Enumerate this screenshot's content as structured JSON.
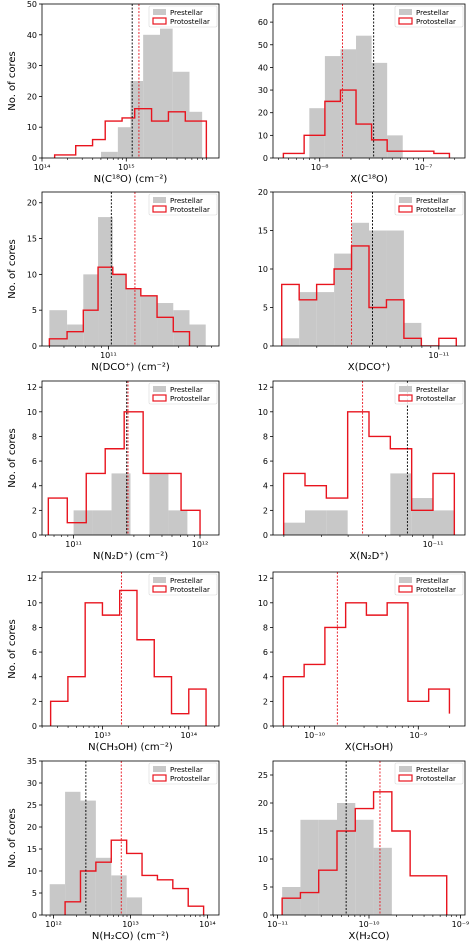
{
  "legend": {
    "prestellar": "Prestellar",
    "protostellar": "Protostellar"
  },
  "colors": {
    "prestellar_fill": "#c8c8c8",
    "protostellar_edge": "#e8141e",
    "median_prestellar": "#000000",
    "median_protostellar": "#e8141e"
  },
  "chart_data": [
    {
      "type": "bar",
      "xscale": "log",
      "xlim_log10": [
        14.0,
        16.1
      ],
      "ylim": [
        0,
        50
      ],
      "yticks": [
        0,
        10,
        20,
        30,
        40,
        50
      ],
      "xticks_log10": [
        14,
        15
      ],
      "xtick_labels": [
        "10¹⁴",
        "10¹⁵"
      ],
      "xlabel": "N(C¹⁸O) (cm⁻²)",
      "ylabel": "No. of cores",
      "legend": true,
      "prestellar": {
        "edges_log10": [
          14.5,
          14.7,
          14.9,
          15.05,
          15.2,
          15.4,
          15.55,
          15.75,
          15.9
        ],
        "counts": [
          0,
          2,
          10,
          25,
          40,
          42,
          28,
          15,
          6
        ]
      },
      "protostellar": {
        "edges_log10": [
          14.15,
          14.4,
          14.6,
          14.75,
          14.95,
          15.1,
          15.3,
          15.5,
          15.7,
          15.95
        ],
        "counts": [
          1,
          4,
          6,
          12,
          13,
          16,
          12,
          15,
          12
        ]
      },
      "median_prestellar_log10": 15.07,
      "median_protostellar_log10": 15.15
    },
    {
      "type": "bar",
      "xscale": "log",
      "xlim_log10": [
        -8.45,
        -6.6
      ],
      "ylim": [
        0,
        68
      ],
      "yticks": [
        0,
        10,
        20,
        30,
        40,
        50,
        60
      ],
      "xticks_log10": [
        -8,
        -7
      ],
      "xtick_labels": [
        "10⁻⁸",
        "10⁻⁷"
      ],
      "xlabel": "X(C¹⁸O)",
      "ylabel": "",
      "legend": true,
      "prestellar": {
        "edges_log10": [
          -8.3,
          -8.1,
          -7.95,
          -7.8,
          -7.65,
          -7.5,
          -7.35,
          -7.2,
          -7.05,
          -6.9
        ],
        "counts": [
          0,
          22,
          45,
          48,
          54,
          42,
          10,
          0,
          0
        ]
      },
      "protostellar": {
        "edges_log10": [
          -8.35,
          -8.15,
          -7.95,
          -7.8,
          -7.65,
          -7.5,
          -7.35,
          -7.2,
          -7.05,
          -6.9,
          -6.75
        ],
        "counts": [
          2,
          10,
          25,
          30,
          15,
          8,
          3,
          3,
          3,
          2
        ]
      },
      "median_prestellar_log10": -7.48,
      "median_protostellar_log10": -7.78
    },
    {
      "type": "bar",
      "xscale": "log",
      "xlim_log10": [
        10.55,
        11.75
      ],
      "ylim": [
        0,
        21.5
      ],
      "yticks": [
        0,
        5,
        10,
        15,
        20
      ],
      "xticks_log10": [
        11
      ],
      "xtick_labels": [
        "10¹¹"
      ],
      "xlabel": "N(DCO⁺) (cm⁻²)",
      "ylabel": "No. of cores",
      "legend": true,
      "prestellar": {
        "edges_log10": [
          10.6,
          10.72,
          10.83,
          10.93,
          11.03,
          11.12,
          11.22,
          11.33,
          11.44,
          11.55,
          11.66
        ],
        "counts": [
          5,
          3,
          10,
          18,
          10,
          8,
          7,
          6,
          5,
          3
        ]
      },
      "protostellar": {
        "edges_log10": [
          10.6,
          10.72,
          10.83,
          10.93,
          11.03,
          11.12,
          11.22,
          11.33,
          11.44,
          11.55
        ],
        "counts": [
          1,
          2,
          5,
          11,
          10,
          8,
          7,
          4,
          2
        ]
      },
      "median_prestellar_log10": 11.02,
      "median_protostellar_log10": 11.18
    },
    {
      "type": "bar",
      "xscale": "log",
      "xlim_log10": [
        -11.95,
        -10.85
      ],
      "ylim": [
        0,
        20
      ],
      "yticks": [
        0,
        5,
        10,
        15,
        20
      ],
      "xticks_log10": [
        -11
      ],
      "xtick_labels": [
        "10⁻¹¹"
      ],
      "xlabel": "X(DCO⁺)",
      "ylabel": "",
      "legend": true,
      "prestellar": {
        "edges_log10": [
          -11.9,
          -11.8,
          -11.7,
          -11.6,
          -11.5,
          -11.4,
          -11.3,
          -11.2,
          -11.1,
          -11.0
        ],
        "counts": [
          1,
          7,
          7,
          12,
          16,
          15,
          15,
          3,
          0
        ]
      },
      "protostellar": {
        "edges_log10": [
          -11.9,
          -11.8,
          -11.7,
          -11.6,
          -11.5,
          -11.4,
          -11.3,
          -11.2,
          -11.1,
          -11.0,
          -10.9
        ],
        "counts": [
          8,
          6,
          8,
          10,
          13,
          5,
          6,
          1,
          0,
          1
        ]
      },
      "median_prestellar_log10": -11.38,
      "median_protostellar_log10": -11.5
    },
    {
      "type": "bar",
      "xscale": "log",
      "xlim_log10": [
        10.75,
        12.15
      ],
      "ylim": [
        0,
        12.5
      ],
      "yticks": [
        0,
        2,
        4,
        6,
        8,
        10,
        12
      ],
      "xticks_log10": [
        11,
        12
      ],
      "xtick_labels": [
        "10¹¹",
        "10¹²"
      ],
      "xlabel": "N(N₂D⁺) (cm⁻²)",
      "ylabel": "No. of cores",
      "legend": true,
      "prestellar": {
        "edges_log10": [
          11.0,
          11.15,
          11.3,
          11.45,
          11.6,
          11.75,
          11.9
        ],
        "counts": [
          2,
          2,
          5,
          0,
          5,
          2
        ]
      },
      "protostellar": {
        "edges_log10": [
          10.8,
          10.95,
          11.1,
          11.25,
          11.4,
          11.55,
          11.7,
          11.85,
          12.0
        ],
        "counts": [
          3,
          1,
          5,
          7,
          10,
          5,
          5,
          2
        ]
      },
      "median_prestellar_log10": 11.42,
      "median_protostellar_log10": 11.43
    },
    {
      "type": "bar",
      "xscale": "log",
      "xlim_log10": [
        -11.75,
        -10.85
      ],
      "ylim": [
        0,
        12.5
      ],
      "yticks": [
        0,
        2,
        4,
        6,
        8,
        10,
        12
      ],
      "xticks_log10": [
        -11
      ],
      "xtick_labels": [
        "10⁻¹¹"
      ],
      "xlabel": "X(N₂D⁺)",
      "ylabel": "",
      "legend": true,
      "prestellar": {
        "edges_log10": [
          -11.7,
          -11.6,
          -11.5,
          -11.4,
          -11.3,
          -11.2,
          -11.1,
          -11.0,
          -10.9
        ],
        "counts": [
          1,
          2,
          2,
          0,
          0,
          5,
          3,
          2
        ]
      },
      "protostellar": {
        "edges_log10": [
          -11.7,
          -11.6,
          -11.5,
          -11.4,
          -11.3,
          -11.2,
          -11.1,
          -11.0,
          -10.9
        ],
        "counts": [
          5,
          4,
          3,
          10,
          8,
          7,
          2,
          5
        ]
      },
      "median_prestellar_log10": -11.12,
      "median_protostellar_log10": -11.33
    },
    {
      "type": "bar",
      "xscale": "log",
      "xlim_log10": [
        12.3,
        14.35
      ],
      "ylim": [
        0,
        12.5
      ],
      "yticks": [
        0,
        2,
        4,
        6,
        8,
        10,
        12
      ],
      "xticks_log10": [
        13,
        14
      ],
      "xtick_labels": [
        "10¹³",
        "10¹⁴"
      ],
      "xlabel": "N(CH₃OH) (cm⁻²)",
      "ylabel": "No. of cores",
      "legend": true,
      "prestellar": {
        "edges_log10": [],
        "counts": []
      },
      "protostellar": {
        "edges_log10": [
          12.4,
          12.6,
          12.8,
          13.0,
          13.2,
          13.4,
          13.6,
          13.8,
          14.0,
          14.2
        ],
        "counts": [
          2,
          4,
          10,
          9,
          11,
          7,
          4,
          1,
          3
        ]
      },
      "median_prestellar_log10": null,
      "median_protostellar_log10": 13.22
    },
    {
      "type": "bar",
      "xscale": "log",
      "xlim_log10": [
        -10.4,
        -8.55
      ],
      "ylim": [
        0,
        12.5
      ],
      "yticks": [
        0,
        2,
        4,
        6,
        8,
        10,
        12
      ],
      "xticks_log10": [
        -10,
        -9
      ],
      "xtick_labels": [
        "10⁻¹⁰",
        "10⁻⁹"
      ],
      "xlabel": "X(CH₃OH)",
      "ylabel": "",
      "legend": true,
      "prestellar": {
        "edges_log10": [],
        "counts": []
      },
      "protostellar": {
        "edges_log10": [
          -10.3,
          -10.1,
          -9.9,
          -9.7,
          -9.5,
          -9.3,
          -9.1,
          -8.9,
          -8.7
        ],
        "counts": [
          4,
          5,
          8,
          10,
          9,
          10,
          2,
          3,
          1
        ]
      },
      "median_prestellar_log10": null,
      "median_protostellar_log10": -9.78
    },
    {
      "type": "bar",
      "xscale": "log",
      "xlim_log10": [
        11.85,
        14.15
      ],
      "ylim": [
        0,
        35
      ],
      "yticks": [
        0,
        5,
        10,
        15,
        20,
        25,
        30,
        35
      ],
      "xticks_log10": [
        12,
        13,
        14
      ],
      "xtick_labels": [
        "10¹²",
        "10¹³",
        "10¹⁴"
      ],
      "xlabel": "N(H₂CO) (cm⁻²)",
      "ylabel": "No. of cores",
      "legend": true,
      "prestellar": {
        "edges_log10": [
          11.95,
          12.15,
          12.35,
          12.55,
          12.75,
          12.95,
          13.15
        ],
        "counts": [
          7,
          28,
          26,
          13,
          9,
          4
        ]
      },
      "protostellar": {
        "edges_log10": [
          12.15,
          12.35,
          12.55,
          12.75,
          12.95,
          13.15,
          13.35,
          13.55,
          13.75,
          13.95
        ],
        "counts": [
          3,
          10,
          12,
          17,
          14,
          9,
          8,
          6,
          2
        ]
      },
      "median_prestellar_log10": 12.42,
      "median_protostellar_log10": 12.88
    },
    {
      "type": "bar",
      "xscale": "log",
      "xlim_log10": [
        -11.05,
        -8.95
      ],
      "ylim": [
        0,
        27.5
      ],
      "yticks": [
        0,
        5,
        10,
        15,
        20,
        25
      ],
      "xticks_log10": [
        -11,
        -10,
        -9
      ],
      "xtick_labels": [
        "10⁻¹¹",
        "10⁻¹⁰",
        "10⁻⁹"
      ],
      "xlabel": "X(H₂CO)",
      "ylabel": "",
      "legend": true,
      "prestellar": {
        "edges_log10": [
          -10.95,
          -10.75,
          -10.55,
          -10.35,
          -10.15,
          -9.95,
          -9.75
        ],
        "counts": [
          5,
          17,
          17,
          20,
          17,
          12
        ]
      },
      "protostellar": {
        "edges_log10": [
          -10.95,
          -10.75,
          -10.55,
          -10.35,
          -10.15,
          -9.95,
          -9.75,
          -9.55,
          -9.35,
          -9.15
        ],
        "counts": [
          3,
          4,
          8,
          15,
          19,
          22,
          15,
          7,
          7
        ]
      },
      "median_prestellar_log10": -10.25,
      "median_protostellar_log10": -9.88
    }
  ]
}
